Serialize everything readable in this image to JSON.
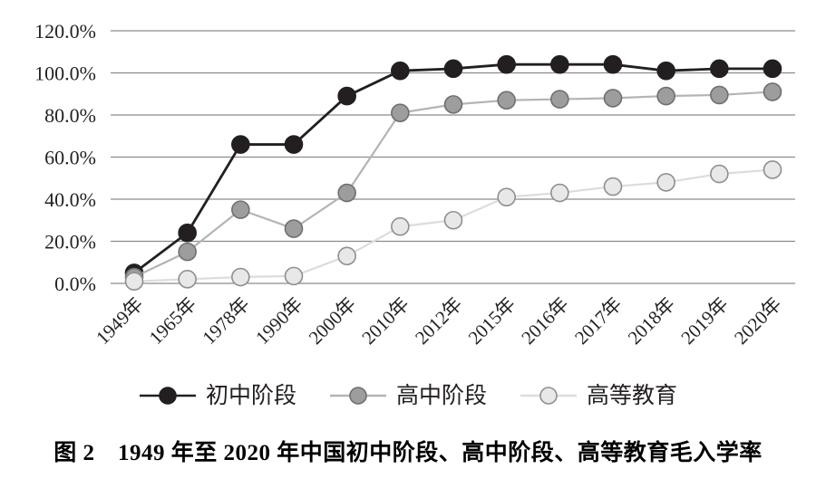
{
  "caption": "图 2　1949 年至 2020 年中国初中阶段、高中阶段、高等教育毛入学率",
  "figure_label": "图 2",
  "colors": {
    "background": "#ffffff",
    "grid": "#8c8c8c",
    "text": "#231f20",
    "series_junior": "#231f20",
    "series_senior": "#9d9d9d",
    "series_higher": "#e8e8e8"
  },
  "chart_data": {
    "type": "line",
    "title": "",
    "xlabel": "",
    "ylabel": "",
    "ylim": [
      0,
      120
    ],
    "grid": true,
    "legend_position": "bottom",
    "grid_color": "#8c8c8c",
    "text_color": "#231f20",
    "y_ticks": [
      "0.0%",
      "20.0%",
      "40.0%",
      "60.0%",
      "80.0%",
      "100.0%",
      "120.0%"
    ],
    "categories": [
      "1949年",
      "1965年",
      "1978年",
      "1990年",
      "2000年",
      "2010年",
      "2012年",
      "2015年",
      "2016年",
      "2017年",
      "2018年",
      "2019年",
      "2020年"
    ],
    "series": [
      {
        "name": "初中阶段",
        "line_color": "#231f20",
        "marker_fill": "#231f20",
        "marker_stroke": "#231f20",
        "values": [
          5,
          24,
          66,
          66,
          89,
          101,
          102,
          104,
          104,
          104,
          101,
          102,
          102
        ]
      },
      {
        "name": "高中阶段",
        "line_color": "#b4b4b4",
        "marker_fill": "#9d9d9d",
        "marker_stroke": "#6f6f6f",
        "values": [
          3,
          15,
          35,
          26,
          43,
          81,
          85,
          87,
          87.5,
          88,
          89,
          89.5,
          91
        ]
      },
      {
        "name": "高等教育",
        "line_color": "#dcdcdc",
        "marker_fill": "#e8e8e8",
        "marker_stroke": "#8f8f8f",
        "values": [
          1,
          2,
          3,
          3.5,
          13,
          27,
          30,
          41,
          43,
          46,
          48,
          52,
          54
        ]
      }
    ]
  }
}
